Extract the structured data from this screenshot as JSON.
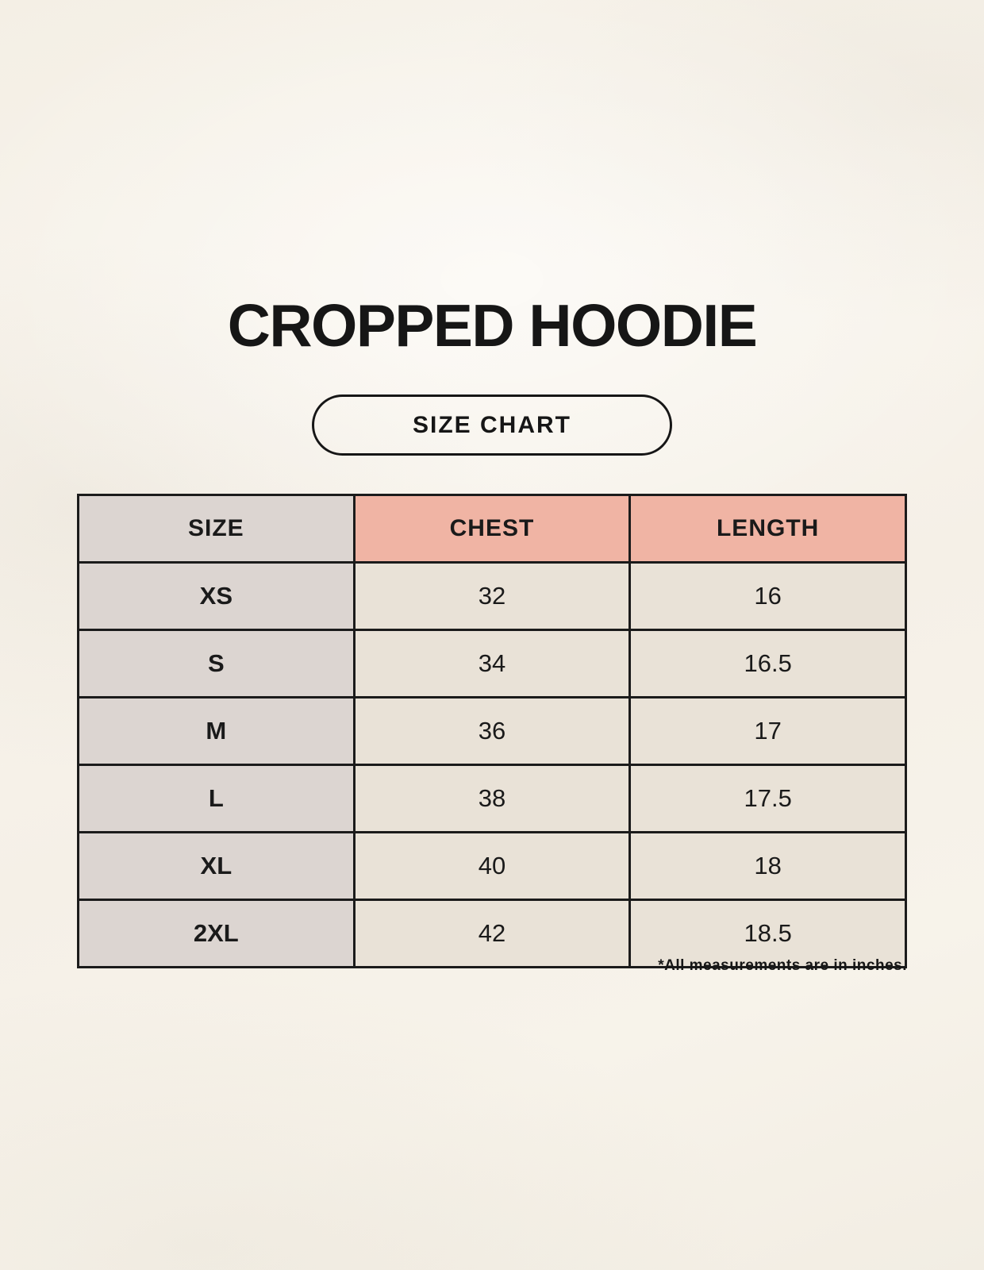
{
  "page": {
    "title": "CROPPED HOODIE",
    "button_label": "SIZE CHART",
    "footnote": "*All measurements are in inches."
  },
  "colors": {
    "background": "#f6f2e9",
    "accent_header": "#f0b4a4",
    "label_column": "#dcd5d1",
    "data_cell": "#e9e2d7",
    "border": "#1b1b1b",
    "text": "#161616"
  },
  "chart_data": {
    "type": "table",
    "title": "CROPPED HOODIE",
    "subtitle": "SIZE CHART",
    "columns": [
      "SIZE",
      "CHEST",
      "LENGTH"
    ],
    "rows": [
      [
        "XS",
        "32",
        "16"
      ],
      [
        "S",
        "34",
        "16.5"
      ],
      [
        "M",
        "36",
        "17"
      ],
      [
        "L",
        "38",
        "17.5"
      ],
      [
        "XL",
        "40",
        "18"
      ],
      [
        "2XL",
        "42",
        "18.5"
      ]
    ],
    "units": "inches",
    "note": "*All measurements are in inches."
  }
}
